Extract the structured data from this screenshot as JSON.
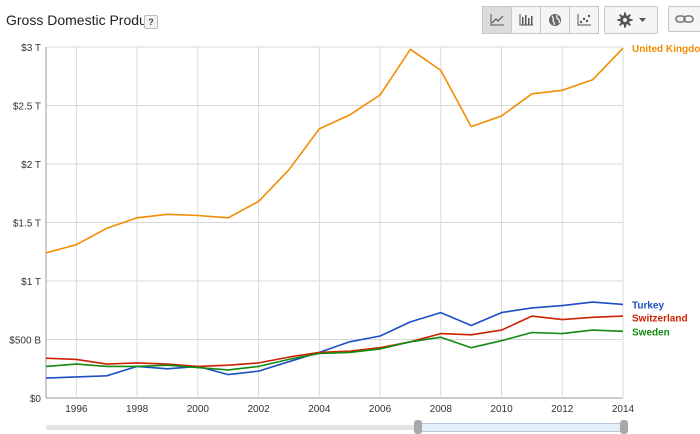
{
  "header": {
    "title": "Gross Domestic Product",
    "help_label": "?"
  },
  "toolbar": {
    "buttons": [
      {
        "icon": "line-chart-icon",
        "active": true
      },
      {
        "icon": "bar-chart-icon",
        "active": false
      },
      {
        "icon": "globe-icon",
        "active": false
      },
      {
        "icon": "scatter-chart-icon",
        "active": false
      }
    ],
    "settings_icon": "gear-icon",
    "dropdown_icon": "caret-down-icon",
    "link_icon": "link-icon"
  },
  "chart_data": {
    "type": "line",
    "title": "",
    "xlabel": "",
    "ylabel": "",
    "x": [
      1995,
      1996,
      1997,
      1998,
      1999,
      2000,
      2001,
      2002,
      2003,
      2004,
      2005,
      2006,
      2007,
      2008,
      2009,
      2010,
      2011,
      2012,
      2013,
      2014
    ],
    "xlim": [
      1995,
      2014
    ],
    "ylim": [
      0,
      3000
    ],
    "y_unit": "billions of USD",
    "x_tick_labels": [
      "1996",
      "1998",
      "2000",
      "2002",
      "2004",
      "2006",
      "2008",
      "2010",
      "2012",
      "2014"
    ],
    "x_tick_values": [
      1996,
      1998,
      2000,
      2002,
      2004,
      2006,
      2008,
      2010,
      2012,
      2014
    ],
    "y_tick_labels": [
      "$0",
      "$500 B",
      "$1 T",
      "$1.5 T",
      "$2 T",
      "$2.5 T",
      "$3 T"
    ],
    "y_tick_values": [
      0,
      500,
      1000,
      1500,
      2000,
      2500,
      3000
    ],
    "grid": true,
    "legend": "right-end labels",
    "series": [
      {
        "name": "United Kingdom",
        "color": "#f28c00",
        "values": [
          1240,
          1310,
          1450,
          1540,
          1570,
          1560,
          1540,
          1680,
          1950,
          2300,
          2420,
          2590,
          2980,
          2800,
          2320,
          2410,
          2600,
          2630,
          2720,
          2990
        ]
      },
      {
        "name": "Turkey",
        "color": "#1c4fc4",
        "values": [
          170,
          180,
          190,
          270,
          250,
          270,
          200,
          230,
          310,
          390,
          480,
          530,
          650,
          730,
          620,
          730,
          770,
          790,
          820,
          800
        ]
      },
      {
        "name": "Switzerland",
        "color": "#cc2200",
        "values": [
          340,
          330,
          290,
          300,
          290,
          270,
          280,
          300,
          350,
          390,
          400,
          430,
          480,
          550,
          540,
          580,
          700,
          670,
          690,
          700
        ]
      },
      {
        "name": "Sweden",
        "color": "#138a13",
        "values": [
          270,
          290,
          270,
          270,
          280,
          260,
          240,
          270,
          330,
          380,
          390,
          420,
          480,
          520,
          430,
          490,
          560,
          550,
          580,
          570
        ]
      }
    ]
  },
  "time_slider": {
    "range_start": 1995,
    "range_end": 2014
  }
}
